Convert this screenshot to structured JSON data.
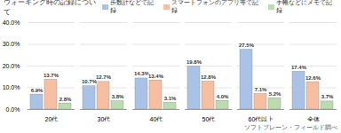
{
  "chart_data": {
    "type": "bar",
    "title": "ウォーキング時の記録について",
    "caption": "ソフトブレーン・フィールド調べ",
    "categories": [
      "20代",
      "30代",
      "40代",
      "50代",
      "60代以上",
      "全体"
    ],
    "series": [
      {
        "name": "歩数計などで記録",
        "color": "#a9c2e6",
        "values": [
          6.9,
          10.7,
          14.3,
          19.8,
          27.5,
          17.4
        ],
        "value_labels": [
          "6.9%",
          "10.7%",
          "14.3%",
          "19.8%",
          "27.5%",
          "17.4%"
        ]
      },
      {
        "name": "スマートフォンのアプリ等で記録",
        "color": "#f7bfa2",
        "values": [
          13.7,
          12.7,
          13.4,
          12.8,
          7.1,
          12.6
        ],
        "value_labels": [
          "13.7%",
          "12.7%",
          "13.4%",
          "12.8%",
          "7.1%",
          "12.6%"
        ]
      },
      {
        "name": "手帳などにメモで記録",
        "color": "#bcdcb0",
        "values": [
          2.8,
          3.8,
          3.1,
          4.0,
          5.2,
          3.7
        ],
        "value_labels": [
          "2.8%",
          "3.8%",
          "3.1%",
          "4.0%",
          "5.2%",
          "3.7%"
        ]
      }
    ],
    "ylim": [
      0,
      40
    ],
    "yticks": [
      {
        "value": 0,
        "label": "0.0%"
      },
      {
        "value": 10,
        "label": "10.0%"
      },
      {
        "value": 20,
        "label": "20.0%"
      },
      {
        "value": 30,
        "label": "30.0%"
      },
      {
        "value": 40,
        "label": "40.0%"
      }
    ],
    "grid": true,
    "legend": "top-right",
    "data_labels": true
  }
}
